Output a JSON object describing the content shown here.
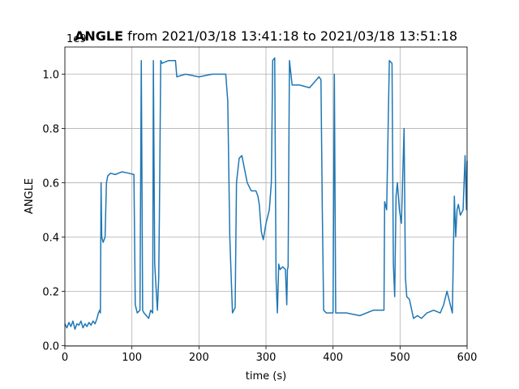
{
  "chart_data": {
    "type": "line",
    "title_bold": "ANGLE",
    "title": "from 2021/03/18 13:41:18 to 2021/03/18 13:51:18",
    "offset_text": "1e9",
    "xlabel": "time (s)",
    "ylabel": "ANGLE",
    "xlim": [
      0,
      600
    ],
    "ylim": [
      -0.002,
      1.1
    ],
    "xticks": [
      0,
      100,
      200,
      300,
      400,
      500,
      600
    ],
    "yticks": [
      {
        "value": 0,
        "label": "0.0"
      },
      0.2,
      0.4,
      0.6,
      0.8,
      {
        "value": 1,
        "label": "1.0"
      }
    ],
    "grid": true,
    "x": [
      0,
      3,
      6,
      9,
      12,
      15,
      18,
      21,
      24,
      27,
      30,
      33,
      36,
      39,
      42,
      45,
      48,
      50,
      52,
      53,
      54,
      55,
      57,
      60,
      62,
      64,
      68,
      75,
      85,
      95,
      103,
      105,
      108,
      112,
      114,
      115,
      116,
      118,
      125,
      128,
      131,
      132,
      134,
      138,
      140,
      141,
      143,
      145,
      155,
      165,
      167,
      180,
      200,
      220,
      237,
      240,
      243,
      246,
      250,
      254,
      256,
      260,
      264,
      268,
      272,
      278,
      285,
      288,
      290,
      293,
      296,
      300,
      305,
      308,
      310,
      313,
      315,
      317,
      319,
      321,
      325,
      329,
      331,
      332,
      333,
      335,
      339,
      350,
      365,
      379,
      382,
      384,
      386,
      390,
      400,
      402,
      404,
      420,
      440,
      460,
      476,
      477,
      480,
      484,
      488,
      490,
      492,
      494,
      496,
      499,
      502,
      506,
      508,
      510,
      514,
      520,
      526,
      532,
      540,
      550,
      560,
      565,
      570,
      578,
      581,
      583,
      585,
      587,
      590,
      594,
      597,
      599,
      600
    ],
    "series": [
      {
        "name": "ANGLE",
        "color": "#1f77b4",
        "values": [
          0.08,
          0.065,
          0.085,
          0.07,
          0.09,
          0.06,
          0.08,
          0.075,
          0.09,
          0.065,
          0.08,
          0.07,
          0.085,
          0.075,
          0.09,
          0.08,
          0.1,
          0.12,
          0.13,
          0.12,
          0.6,
          0.4,
          0.38,
          0.4,
          0.6,
          0.625,
          0.635,
          0.63,
          0.64,
          0.635,
          0.63,
          0.15,
          0.12,
          0.13,
          1.05,
          0.6,
          0.13,
          0.12,
          0.1,
          0.13,
          0.12,
          1.05,
          0.3,
          0.13,
          0.25,
          0.48,
          1.05,
          1.04,
          1.05,
          1.05,
          0.99,
          1.0,
          0.99,
          1.0,
          1.0,
          1.0,
          0.9,
          0.4,
          0.12,
          0.14,
          0.6,
          0.69,
          0.7,
          0.65,
          0.6,
          0.57,
          0.57,
          0.55,
          0.52,
          0.42,
          0.39,
          0.45,
          0.5,
          0.6,
          1.05,
          1.06,
          0.25,
          0.12,
          0.3,
          0.28,
          0.29,
          0.28,
          0.15,
          0.28,
          0.29,
          1.05,
          0.96,
          0.96,
          0.95,
          0.99,
          0.98,
          0.5,
          0.13,
          0.12,
          0.12,
          1.0,
          0.12,
          0.12,
          0.11,
          0.13,
          0.13,
          0.53,
          0.5,
          1.05,
          1.04,
          0.3,
          0.18,
          0.55,
          0.6,
          0.5,
          0.45,
          0.8,
          0.25,
          0.18,
          0.17,
          0.1,
          0.11,
          0.1,
          0.12,
          0.13,
          0.12,
          0.15,
          0.2,
          0.12,
          0.55,
          0.4,
          0.5,
          0.52,
          0.48,
          0.5,
          0.7,
          0.5,
          0.68
        ]
      }
    ]
  }
}
